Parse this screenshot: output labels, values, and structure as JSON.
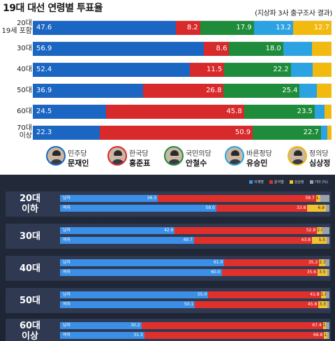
{
  "top": {
    "title": "19대 대선 연령별 투표율",
    "subtitle": "(지상파 3사 출구조사 결과)"
  },
  "bottom": {
    "legend": [
      {
        "label": "이재명",
        "color": "#3b8fe6"
      },
      {
        "label": "윤석열",
        "color": "#e0302b"
      },
      {
        "label": "심상정",
        "color": "#f2c230"
      },
      {
        "label": "기타 (%)",
        "color": "#9aa2ad"
      }
    ]
  },
  "chart_data": [
    {
      "type": "bar",
      "stacked": true,
      "orientation": "horizontal",
      "title": "19대 대선 연령별 투표율",
      "subtitle": "(지상파 3사 출구조사 결과)",
      "categories": [
        [
          "20대",
          "19세 포함"
        ],
        [
          "30대"
        ],
        [
          "40대"
        ],
        [
          "50대"
        ],
        [
          "60대"
        ],
        [
          "70대",
          "이상"
        ]
      ],
      "series": [
        {
          "name": "문재인",
          "party": "민주당",
          "color": "#1b66c2",
          "values": [
            47.6,
            56.9,
            52.4,
            36.9,
            24.5,
            22.3
          ]
        },
        {
          "name": "홍준표",
          "party": "한국당",
          "color": "#d8292b",
          "values": [
            8.2,
            8.6,
            11.5,
            26.8,
            45.8,
            50.9
          ]
        },
        {
          "name": "안철수",
          "party": "국민의당",
          "color": "#1e8c3a",
          "values": [
            17.9,
            18.0,
            22.2,
            25.4,
            23.5,
            22.7
          ]
        },
        {
          "name": "유승민",
          "party": "바른정당",
          "color": "#2ba3e2",
          "values": [
            13.2,
            9.6,
            7.4,
            5.6,
            3.2,
            2.0
          ]
        },
        {
          "name": "심상정",
          "party": "정의당",
          "color": "#f2b90f",
          "values": [
            12.7,
            6.5,
            6.2,
            5.0,
            2.4,
            1.5
          ]
        }
      ],
      "labels_shown": [
        [
          "47.6",
          "8.2",
          "17.9",
          "13.2",
          "12.7"
        ],
        [
          "56.9",
          "8.6",
          "18.0",
          "",
          ""
        ],
        [
          "52.4",
          "11.5",
          "22.2",
          "",
          ""
        ],
        [
          "36.9",
          "26.8",
          "25.4",
          "",
          ""
        ],
        [
          "24.5",
          "45.8",
          "23.5",
          "",
          ""
        ],
        [
          "22.3",
          "50.9",
          "22.7",
          "",
          ""
        ]
      ],
      "xlim": [
        0,
        100
      ],
      "legend": "bottom"
    },
    {
      "type": "bar",
      "stacked": true,
      "orientation": "horizontal",
      "groups": [
        {
          "label": [
            "20대",
            "이하"
          ],
          "rows": [
            {
              "gender": "남자",
              "values": [
                36.3,
                58.7,
                1.7,
                3.3
              ]
            },
            {
              "gender": "여자",
              "values": [
                58.0,
                33.8,
                6.9,
                1.3
              ]
            }
          ]
        },
        {
          "label": [
            "30대"
          ],
          "rows": [
            {
              "gender": "남자",
              "values": [
                42.6,
                52.8,
                2.0,
                2.6
              ]
            },
            {
              "gender": "여자",
              "values": [
                49.7,
                43.8,
                5.5,
                1.0
              ]
            }
          ]
        },
        {
          "label": [
            "40대"
          ],
          "rows": [
            {
              "gender": "남자",
              "values": [
                61.0,
                35.2,
                2.3,
                1.5
              ]
            },
            {
              "gender": "여자",
              "values": [
                60.0,
                35.6,
                3.5,
                0.9
              ]
            }
          ]
        },
        {
          "label": [
            "50대"
          ],
          "rows": [
            {
              "gender": "남자",
              "values": [
                55.0,
                41.8,
                1.8,
                1.4
              ]
            },
            {
              "gender": "여자",
              "values": [
                50.1,
                45.8,
                3.3,
                0.8
              ]
            }
          ]
        },
        {
          "label": [
            "60대",
            "이상"
          ],
          "rows": [
            {
              "gender": "남자",
              "values": [
                30.2,
                67.4,
                1.0,
                1.4
              ]
            },
            {
              "gender": "여자",
              "values": [
                31.3,
                66.8,
                1.2,
                0.7
              ]
            }
          ]
        }
      ],
      "series": [
        {
          "name": "이재명",
          "color": "#3b8fe6"
        },
        {
          "name": "윤석열",
          "color": "#e0302b"
        },
        {
          "name": "심상정",
          "color": "#f2c230"
        },
        {
          "name": "기타 (%)",
          "color": "#9aa2ad"
        }
      ],
      "xlim": [
        0,
        100
      ],
      "legend": "top-right"
    }
  ]
}
